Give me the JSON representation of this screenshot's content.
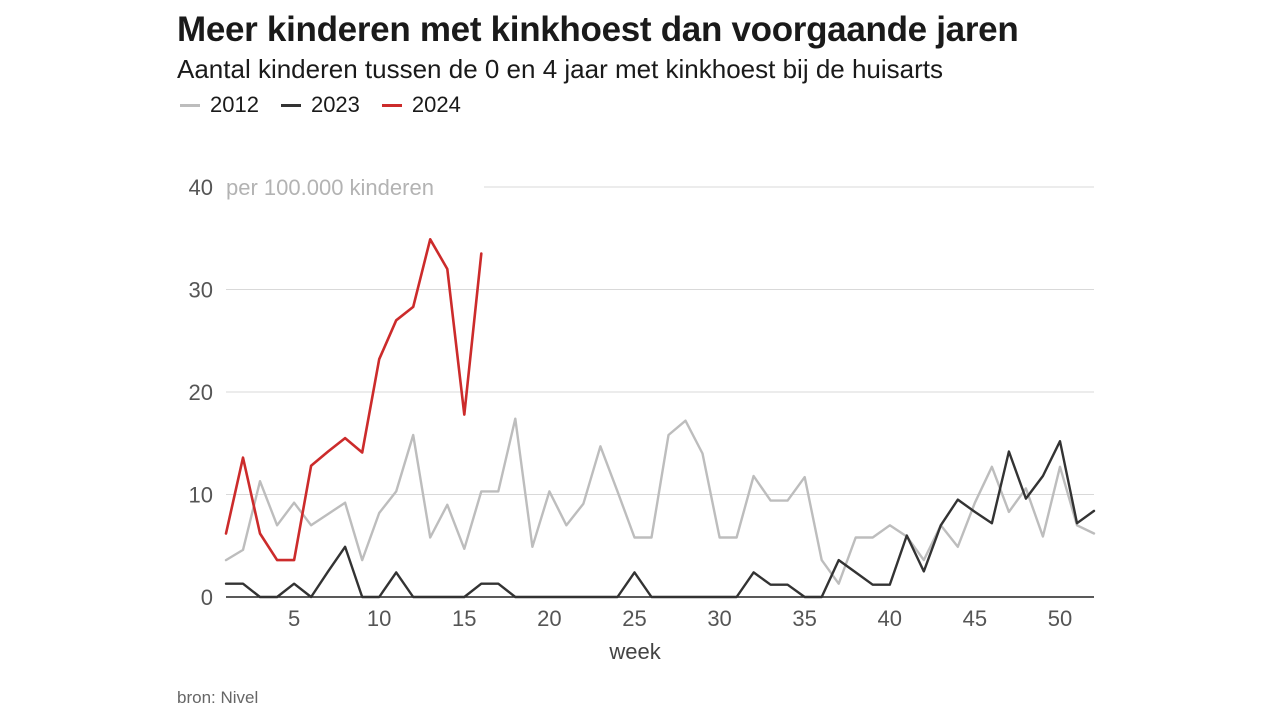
{
  "chart_data": {
    "type": "line",
    "title": "Meer kinderen met kinkhoest dan voorgaande jaren",
    "subtitle": "Aantal kinderen tussen de 0 en 4 jaar met kinkhoest bij de huisarts",
    "xlabel": "week",
    "unit_label": "per 100.000 kinderen",
    "source": "bron: Nivel",
    "xlim": [
      1,
      52
    ],
    "ylim": [
      0,
      40
    ],
    "x_ticks": [
      5,
      10,
      15,
      20,
      25,
      30,
      35,
      40,
      45,
      50
    ],
    "y_ticks": [
      0,
      10,
      20,
      30,
      40
    ],
    "grid": true,
    "legend_position": "top-left",
    "series": [
      {
        "name": "2012",
        "color": "#bdbdbd",
        "x": [
          1,
          2,
          3,
          4,
          5,
          6,
          7,
          8,
          9,
          10,
          11,
          12,
          13,
          14,
          15,
          16,
          17,
          18,
          19,
          20,
          21,
          22,
          23,
          24,
          25,
          26,
          27,
          28,
          29,
          30,
          31,
          32,
          33,
          34,
          35,
          36,
          37,
          38,
          39,
          40,
          41,
          42,
          43,
          44,
          45,
          46,
          47,
          48,
          49,
          50,
          51,
          52
        ],
        "values": [
          3.6,
          4.6,
          11.3,
          7.0,
          9.2,
          7.0,
          8.1,
          9.2,
          3.6,
          8.2,
          10.3,
          15.8,
          5.8,
          9.0,
          4.7,
          10.3,
          10.3,
          17.4,
          4.9,
          10.3,
          7.0,
          9.1,
          14.7,
          10.3,
          5.8,
          5.8,
          15.8,
          17.2,
          14.0,
          5.8,
          5.8,
          11.8,
          9.4,
          9.4,
          11.7,
          3.6,
          1.3,
          5.8,
          5.8,
          7.0,
          5.9,
          3.6,
          7.0,
          4.9,
          9.2,
          12.7,
          8.3,
          10.6,
          5.9,
          12.7,
          7.0,
          6.2
        ]
      },
      {
        "name": "2023",
        "color": "#333333",
        "x": [
          1,
          2,
          3,
          4,
          5,
          6,
          7,
          8,
          9,
          10,
          11,
          12,
          13,
          14,
          15,
          16,
          17,
          18,
          19,
          20,
          21,
          22,
          23,
          24,
          25,
          26,
          27,
          28,
          29,
          30,
          31,
          32,
          33,
          34,
          35,
          36,
          37,
          38,
          39,
          40,
          41,
          42,
          43,
          44,
          45,
          46,
          47,
          48,
          49,
          50,
          51,
          52
        ],
        "values": [
          1.3,
          1.3,
          0,
          0,
          1.3,
          0,
          2.5,
          4.9,
          0,
          0,
          2.4,
          0,
          0,
          0,
          0,
          1.3,
          1.3,
          0,
          0,
          0,
          0,
          0,
          0,
          0,
          2.4,
          0,
          0,
          0,
          0,
          0,
          0,
          2.4,
          1.2,
          1.2,
          0,
          0,
          3.6,
          2.4,
          1.2,
          1.2,
          6.0,
          2.5,
          7.0,
          9.5,
          8.3,
          7.2,
          14.2,
          9.6,
          11.8,
          15.2,
          7.2,
          8.4
        ]
      },
      {
        "name": "2024",
        "color": "#cc2b2b",
        "x": [
          1,
          2,
          3,
          4,
          5,
          6,
          7,
          8,
          9,
          10,
          11,
          12,
          13,
          14,
          15,
          16
        ],
        "values": [
          6.2,
          13.6,
          6.2,
          3.6,
          3.6,
          12.8,
          14.2,
          15.5,
          14.1,
          23.2,
          27.0,
          28.3,
          34.9,
          32.0,
          17.8,
          33.5
        ]
      }
    ]
  }
}
